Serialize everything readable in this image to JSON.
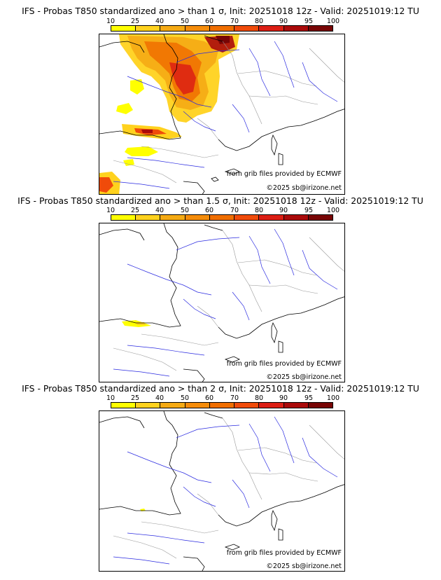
{
  "colorbar": {
    "ticks": [
      "10",
      "25",
      "40",
      "50",
      "60",
      "70",
      "80",
      "90",
      "95",
      "100"
    ],
    "colors": [
      "#ffff00",
      "#ffd21e",
      "#f5aa14",
      "#f58c0a",
      "#f06e00",
      "#f04b0a",
      "#dc1e14",
      "#aa0a0a",
      "#780505"
    ]
  },
  "panels": [
    {
      "title": "IFS - Probas T850  standardized ano > than 1 σ, Init: 20251018 12z - Valid: 20251019:12 TU",
      "credit_source": "from grib files provided by ECMWF",
      "credit_copyright": "©2025 sb@irizone.net"
    },
    {
      "title": "IFS - Probas T850  standardized ano > than 1.5 σ, Init: 20251018 12z - Valid: 20251019:12 TU",
      "credit_source": "from grib files provided by ECMWF",
      "credit_copyright": "©2025 sb@irizone.net"
    },
    {
      "title": "IFS - Probas T850  standardized ano > than 2 σ, Init: 20251018 12z - Valid: 20251019:12 TU",
      "credit_source": "from grib files provided by ECMWF",
      "credit_copyright": "©2025 sb@irizone.net"
    }
  ]
}
